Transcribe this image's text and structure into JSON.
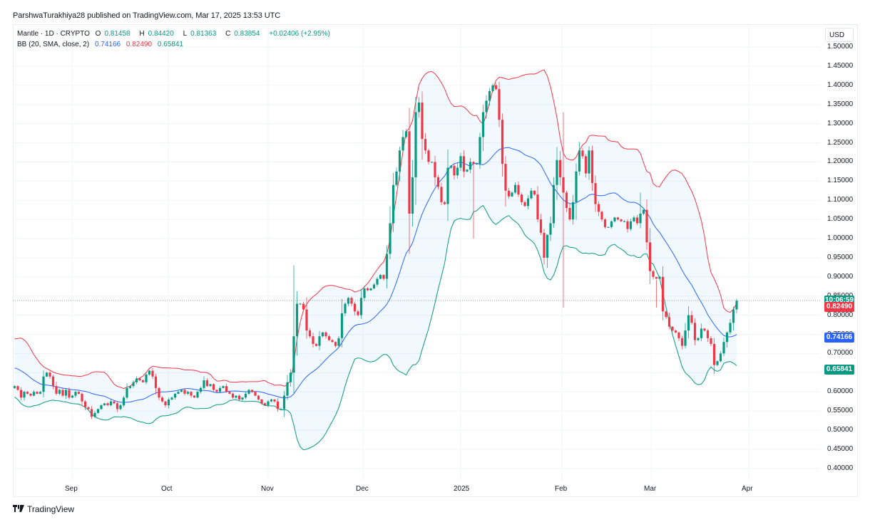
{
  "header": {
    "publisher_line": "ParshwaTurakhiya28 published on TradingView.com, Mar 17, 2025 13:53 UTC"
  },
  "legend": {
    "symbol": "Mantle · 1D · CRYPTO",
    "open_label": "O",
    "open": "0.81458",
    "high_label": "H",
    "high": "0.84420",
    "low_label": "L",
    "low": "0.81363",
    "close_label": "C",
    "close": "0.83854",
    "change": "+0.02406 (+2.95%)",
    "bb_label": "BB (20, SMA, close, 2)",
    "bb_basis": "0.74166",
    "bb_upper": "0.82490",
    "bb_lower": "0.65841"
  },
  "axis": {
    "currency": "USD",
    "countdown": "10:06:59",
    "tags": [
      {
        "text": "10:06:59",
        "price": 0.83854,
        "color": "#089981"
      },
      {
        "text": "0.82490",
        "price": 0.8249,
        "color": "#f23645"
      },
      {
        "text": "0.74166",
        "price": 0.74166,
        "color": "#2962ff"
      },
      {
        "text": "0.65841",
        "price": 0.65841,
        "color": "#089981"
      }
    ]
  },
  "footer": {
    "brand": "TradingView",
    "brand_mark": "TV"
  },
  "colors": {
    "up": "#089981",
    "down": "#f23645",
    "basis": "#2962ff",
    "upper": "#f23645",
    "lower": "#089981",
    "band_fill": "#2196f3",
    "grid": "#f0f3fa"
  },
  "chart_data": {
    "type": "candlestick",
    "title": "Mantle · 1D · CRYPTO",
    "subtitle": "ParshwaTurakhiya28 published on TradingView.com, Mar 17, 2025 13:53 UTC",
    "ylabel": "USD",
    "ylim": [
      0.36,
      1.52
    ],
    "yticks": [
      "1.50000",
      "1.45000",
      "1.40000",
      "1.35000",
      "1.30000",
      "1.25000",
      "1.20000",
      "1.15000",
      "1.10000",
      "1.05000",
      "1.00000",
      "0.95000",
      "0.90000",
      "0.85000",
      "0.80000",
      "0.75000",
      "0.70000",
      "0.65000",
      "0.60000",
      "0.55000",
      "0.50000",
      "0.45000",
      "0.40000"
    ],
    "xticks": [
      {
        "label": "Sep",
        "x": 101
      },
      {
        "label": "Oct",
        "x": 236
      },
      {
        "label": "Nov",
        "x": 376
      },
      {
        "label": "Dec",
        "x": 509
      },
      {
        "label": "2025",
        "x": 646
      },
      {
        "label": "Feb",
        "x": 788
      },
      {
        "label": "Mar",
        "x": 913
      },
      {
        "label": "Apr",
        "x": 1050
      }
    ],
    "last_price": 0.83854,
    "indicator": {
      "name": "BB (20, SMA, close, 2)",
      "basis": 0.74166,
      "upper": 0.8249,
      "lower": 0.65841
    },
    "legend": [
      "Mantle · 1D · CRYPTO",
      "BB (20, SMA, close, 2)"
    ],
    "closes_daily_approx": [
      0.615,
      0.605,
      0.585,
      0.6,
      0.595,
      0.59,
      0.6,
      0.595,
      0.6,
      0.64,
      0.65,
      0.64,
      0.615,
      0.595,
      0.605,
      0.59,
      0.605,
      0.585,
      0.59,
      0.6,
      0.595,
      0.575,
      0.56,
      0.555,
      0.535,
      0.545,
      0.555,
      0.565,
      0.57,
      0.565,
      0.575,
      0.57,
      0.555,
      0.565,
      0.585,
      0.61,
      0.615,
      0.625,
      0.635,
      0.63,
      0.625,
      0.645,
      0.655,
      0.64,
      0.61,
      0.585,
      0.575,
      0.565,
      0.58,
      0.585,
      0.595,
      0.6,
      0.605,
      0.595,
      0.6,
      0.59,
      0.585,
      0.6,
      0.61,
      0.63,
      0.615,
      0.62,
      0.605,
      0.6,
      0.61,
      0.615,
      0.6,
      0.595,
      0.585,
      0.59,
      0.58,
      0.585,
      0.595,
      0.605,
      0.6,
      0.59,
      0.58,
      0.57,
      0.565,
      0.575,
      0.58,
      0.575,
      0.555,
      0.555,
      0.59,
      0.625,
      0.65,
      0.745,
      0.83,
      0.83,
      0.815,
      0.76,
      0.745,
      0.725,
      0.72,
      0.745,
      0.755,
      0.745,
      0.735,
      0.73,
      0.72,
      0.74,
      0.805,
      0.83,
      0.845,
      0.83,
      0.81,
      0.8,
      0.845,
      0.87,
      0.865,
      0.87,
      0.88,
      0.895,
      0.905,
      0.895,
      0.96,
      1.04,
      1.14,
      1.175,
      1.23,
      1.265,
      1.28,
      1.065,
      1.16,
      1.33,
      1.355,
      1.26,
      1.23,
      1.2,
      1.2,
      1.16,
      1.135,
      1.095,
      1.09,
      1.185,
      1.19,
      1.165,
      1.185,
      1.215,
      1.175,
      1.18,
      1.2,
      1.195,
      1.195,
      1.265,
      1.33,
      1.36,
      1.385,
      1.4,
      1.39,
      1.31,
      1.195,
      1.125,
      1.11,
      1.12,
      1.14,
      1.115,
      1.095,
      1.085,
      1.105,
      1.125,
      1.115,
      1.05,
      1.015,
      0.95,
      1.01,
      1.04,
      1.14,
      1.205,
      1.16,
      1.12,
      1.08,
      1.05,
      1.095,
      1.175,
      1.23,
      1.215,
      1.17,
      1.23,
      1.145,
      1.09,
      1.07,
      1.05,
      1.03,
      1.03,
      1.045,
      1.055,
      1.05,
      1.045,
      1.045,
      1.025,
      1.045,
      1.055,
      1.04,
      1.065,
      1.075,
      0.99,
      0.915,
      0.9,
      0.895,
      0.9,
      0.81,
      0.795,
      0.77,
      0.76,
      0.755,
      0.74,
      0.72,
      0.76,
      0.8,
      0.78,
      0.735,
      0.74,
      0.765,
      0.76,
      0.74,
      0.725,
      0.67,
      0.68,
      0.7,
      0.73,
      0.755,
      0.78,
      0.815,
      0.838
    ]
  }
}
